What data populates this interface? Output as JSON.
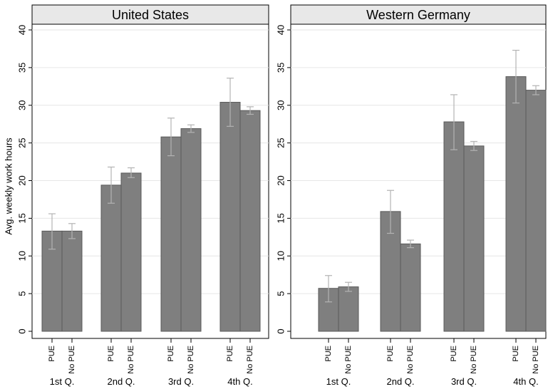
{
  "chart_data": [
    {
      "type": "bar",
      "title": "United States",
      "ylabel": "Avg. weekly work hours",
      "ylim": [
        0,
        40
      ],
      "yticks": [
        0,
        5,
        10,
        15,
        20,
        25,
        30,
        35,
        40
      ],
      "groups": [
        "1st Q.",
        "2nd Q.",
        "3rd Q.",
        "4th Q."
      ],
      "bar_labels": [
        "PUE",
        "No PUE"
      ],
      "series": [
        {
          "name": "PUE",
          "values": [
            13.3,
            19.4,
            25.8,
            30.4
          ],
          "ci_low": [
            10.9,
            17.0,
            23.3,
            27.2
          ],
          "ci_high": [
            15.6,
            21.8,
            28.3,
            33.6
          ]
        },
        {
          "name": "No PUE",
          "values": [
            13.3,
            21.0,
            26.9,
            29.3
          ],
          "ci_low": [
            12.3,
            20.4,
            26.4,
            28.8
          ],
          "ci_high": [
            14.3,
            21.7,
            27.4,
            29.8
          ]
        }
      ],
      "grid": true
    },
    {
      "type": "bar",
      "title": "Western Germany",
      "ylabel": "",
      "ylim": [
        0,
        40
      ],
      "yticks": [
        0,
        5,
        10,
        15,
        20,
        25,
        30,
        35,
        40
      ],
      "groups": [
        "1st Q.",
        "2nd Q.",
        "3rd Q.",
        "4th Q."
      ],
      "bar_labels": [
        "PUE",
        "No PUE"
      ],
      "series": [
        {
          "name": "PUE",
          "values": [
            5.7,
            15.9,
            27.8,
            33.8
          ],
          "ci_low": [
            3.9,
            13.0,
            24.1,
            30.3
          ],
          "ci_high": [
            7.4,
            18.7,
            31.4,
            37.3
          ]
        },
        {
          "name": "No PUE",
          "values": [
            5.9,
            11.6,
            24.6,
            32.0
          ],
          "ci_low": [
            5.3,
            11.1,
            24.0,
            31.4
          ],
          "ci_high": [
            6.5,
            12.1,
            25.2,
            32.6
          ]
        }
      ],
      "grid": true
    }
  ]
}
